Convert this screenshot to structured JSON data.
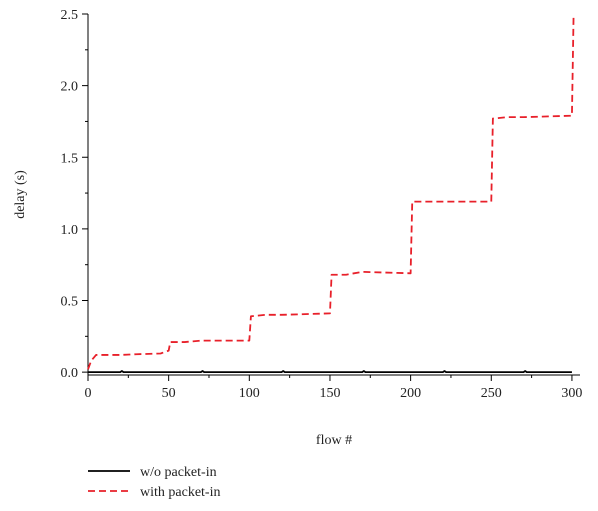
{
  "chart_data": {
    "type": "line",
    "title": "",
    "xlabel": "flow #",
    "ylabel": "delay (s)",
    "xlim": [
      0,
      305
    ],
    "ylim": [
      -0.02,
      2.5
    ],
    "x_ticks": [
      0,
      50,
      100,
      150,
      200,
      250,
      300
    ],
    "y_ticks": [
      0.0,
      0.5,
      1.0,
      1.5,
      2.0,
      2.5
    ],
    "x_tick_labels": [
      "0",
      "50",
      "100",
      "150",
      "200",
      "250",
      "300"
    ],
    "y_tick_labels": [
      "0.0",
      "0.5",
      "1.0",
      "1.5",
      "2.0",
      "2.5"
    ],
    "legend_position": "bottom-left-below",
    "series": [
      {
        "name": "w/o packet-in",
        "color": "#000000",
        "style": "solid",
        "x": [
          0,
          1,
          20,
          21,
          22,
          70,
          71,
          72,
          120,
          121,
          122,
          170,
          171,
          172,
          220,
          221,
          222,
          270,
          271,
          272,
          300
        ],
        "y": [
          0.0,
          0.0,
          0.0,
          0.008,
          0.0,
          0.0,
          0.008,
          0.0,
          0.0,
          0.008,
          0.0,
          0.0,
          0.008,
          0.0,
          0.0,
          0.008,
          0.0,
          0.0,
          0.008,
          0.0,
          0.0
        ]
      },
      {
        "name": "with packet-in",
        "color": "#e8202a",
        "style": "dashed",
        "x": [
          0,
          2,
          5,
          20,
          30,
          45,
          50,
          51,
          60,
          70,
          100,
          101,
          110,
          120,
          150,
          151,
          160,
          170,
          200,
          201,
          220,
          250,
          251,
          260,
          270,
          300,
          301
        ],
        "y": [
          0.02,
          0.08,
          0.12,
          0.12,
          0.125,
          0.13,
          0.15,
          0.21,
          0.21,
          0.22,
          0.22,
          0.39,
          0.4,
          0.4,
          0.41,
          0.68,
          0.68,
          0.7,
          0.69,
          1.19,
          1.19,
          1.19,
          1.77,
          1.78,
          1.78,
          1.79,
          2.48
        ]
      }
    ]
  }
}
